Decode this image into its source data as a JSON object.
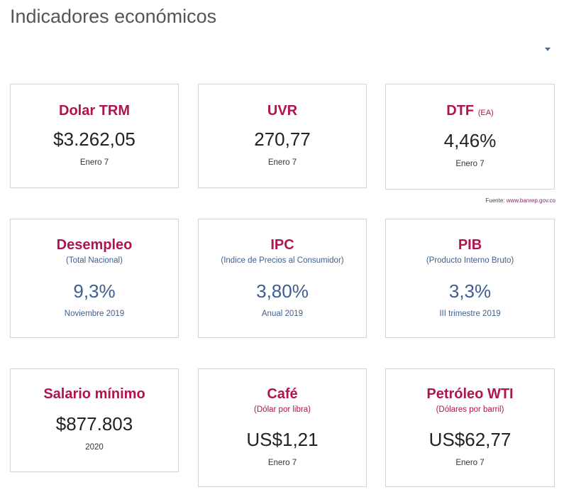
{
  "page": {
    "title": "Indicadores económicos"
  },
  "row1": [
    {
      "title": "Dolar TRM",
      "unit": "",
      "value": "$3.262,05",
      "date": "Enero 7"
    },
    {
      "title": "UVR",
      "unit": "",
      "value": "270,77",
      "date": "Enero 7"
    },
    {
      "title": "DTF",
      "unit": "(EA)",
      "value": "4,46%",
      "date": "Enero 7"
    }
  ],
  "source": {
    "label": "Fuente:",
    "link": "www.banrep.gov.co"
  },
  "row2": [
    {
      "title": "Desempleo",
      "subtitle": "(Total Nacional)",
      "value": "9,3%",
      "date": "Noviembre 2019"
    },
    {
      "title": "IPC",
      "subtitle": "(Indice de Precios al Consumidor)",
      "value": "3,80%",
      "date": "Anual 2019"
    },
    {
      "title": "PIB",
      "subtitle": "(Producto Interno Bruto)",
      "value": "3,3%",
      "date": "III trimestre 2019"
    }
  ],
  "row3": [
    {
      "title": "Salario mínimo",
      "subtitle": "",
      "value": "$877.803",
      "date": "2020"
    },
    {
      "title": "Café",
      "subtitle": "(Dólar por libra)",
      "value": "US$1,21",
      "date": "Enero 7"
    },
    {
      "title": "Petróleo WTI",
      "subtitle": "(Dólares por barril)",
      "value": "US$62,77",
      "date": "Enero 7"
    }
  ],
  "icons": {
    "dropdown": "chevron-down-icon"
  },
  "colors": {
    "accent": "#b0134f",
    "secondary": "#3d5f8f",
    "border": "#d4d4d4",
    "title": "#555555"
  }
}
